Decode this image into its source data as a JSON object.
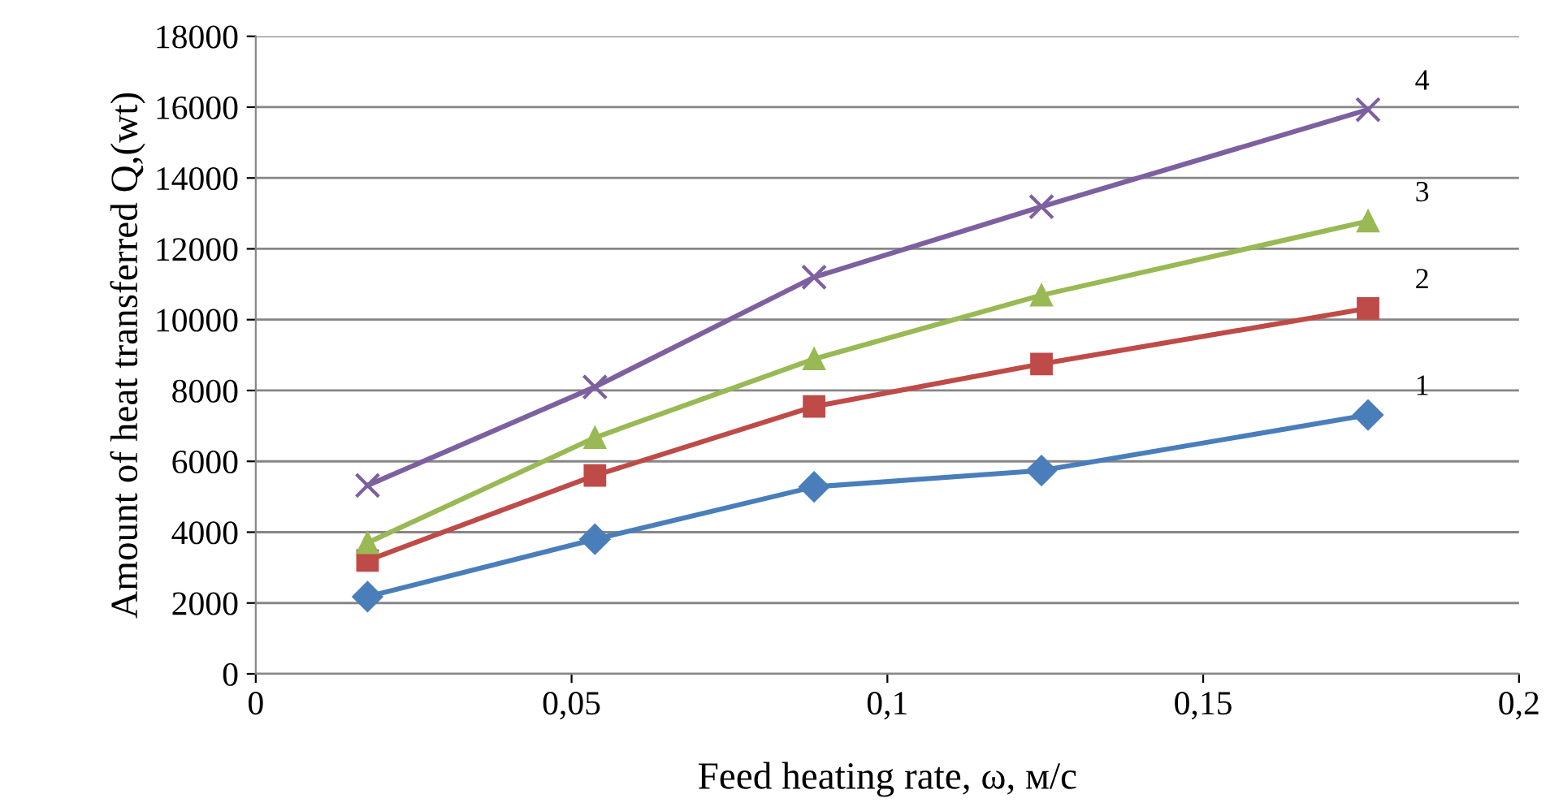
{
  "chart_data": {
    "type": "line",
    "xlabel": "Feed heating rate, ω, м/с",
    "ylabel": "Amount of heat transferred Q,(wt)",
    "x": [
      0.0177,
      0.0537,
      0.0884,
      0.1244,
      0.1761
    ],
    "series": [
      {
        "name": "1",
        "color": "#4a7ebb",
        "marker": "diamond",
        "values": [
          2180,
          3800,
          5280,
          5740,
          7310
        ]
      },
      {
        "name": "2",
        "color": "#be4b48",
        "marker": "square",
        "values": [
          3200,
          5600,
          7550,
          8750,
          10320
        ]
      },
      {
        "name": "3",
        "color": "#98b954",
        "marker": "triangle",
        "values": [
          3700,
          6670,
          8890,
          10690,
          12780
        ]
      },
      {
        "name": "4",
        "color": "#7d60a0",
        "marker": "cross",
        "values": [
          5320,
          8100,
          11200,
          13190,
          15930
        ]
      }
    ],
    "xlim": [
      0,
      0.2
    ],
    "xticks": [
      0,
      {
        "value": 0.05,
        "label": "0,05"
      },
      {
        "value": 0.1,
        "label": "0,1"
      },
      {
        "value": 0.15,
        "label": "0,15"
      },
      {
        "value": 0.2,
        "label": "0,2"
      }
    ],
    "ylim": [
      0,
      18000
    ],
    "yticks": [
      0,
      2000,
      4000,
      6000,
      8000,
      10000,
      12000,
      14000,
      16000,
      18000
    ],
    "grid": "y",
    "line_style": "solid"
  }
}
